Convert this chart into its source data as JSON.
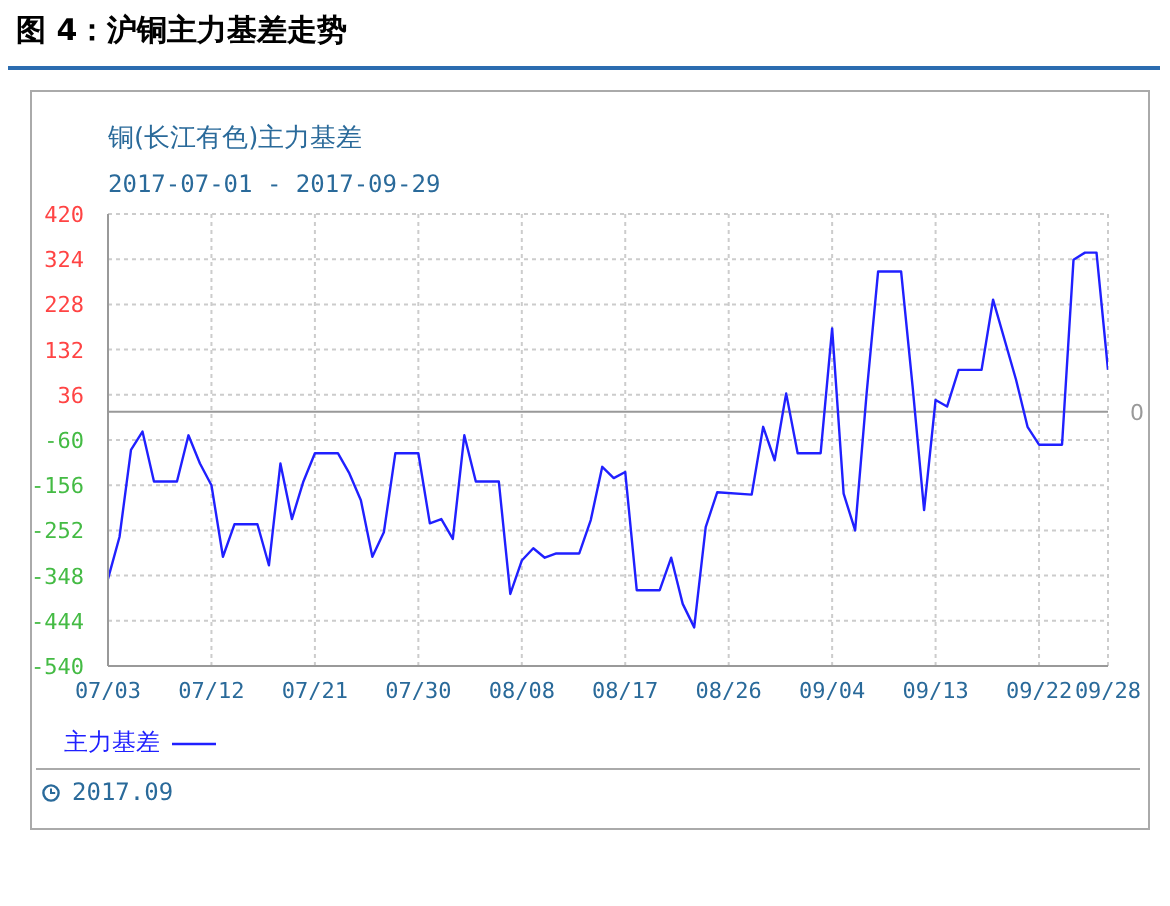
{
  "chart_data": {
    "type": "line",
    "title": "图 4：沪铜主力基差走势",
    "subtitle": "铜(长江有色)主力基差",
    "annotations": [
      "2017-07-01 - 2017-09-29",
      "2017.09"
    ],
    "x": [
      "--07-03",
      "--07-04",
      "--07-05",
      "--07-06",
      "--07-07",
      "--07-09",
      "--07-10",
      "--07-11",
      "--07-12",
      "--07-13",
      "--07-14",
      "--07-16",
      "--07-17",
      "--07-18",
      "--07-19",
      "--07-20",
      "--07-21",
      "--07-23",
      "--07-24",
      "--07-25",
      "--07-26",
      "--07-27",
      "--07-28",
      "--07-30",
      "--07-31",
      "--08-01",
      "--08-02",
      "--08-03",
      "--08-04",
      "--08-06",
      "--08-07",
      "--08-08",
      "--08-09",
      "--08-10",
      "--08-11",
      "--08-13",
      "--08-14",
      "--08-15",
      "--08-16",
      "--08-17",
      "--08-18",
      "--08-20",
      "--08-21",
      "--08-22",
      "--08-23",
      "--08-24",
      "--08-25",
      "--08-28",
      "--08-29",
      "--08-30",
      "--08-31",
      "--09-01",
      "--09-03",
      "--09-04",
      "--09-05",
      "--09-06",
      "--09-07",
      "--09-08",
      "--09-10",
      "--09-11",
      "--09-12",
      "--09-13",
      "--09-14",
      "--09-15",
      "--09-17",
      "--09-18",
      "--09-20",
      "--09-21",
      "--09-22",
      "--09-24",
      "--09-25",
      "--09-26",
      "--09-27",
      "--09-28"
    ],
    "series": [
      {
        "name": "主力基差",
        "color": "#2020ff",
        "values": [
          -355,
          -266,
          -81,
          -42,
          -148,
          -148,
          -50,
          -110,
          -156,
          -308,
          -239,
          -239,
          -326,
          -110,
          -228,
          -148,
          -88,
          -88,
          -131,
          -188,
          -308,
          -256,
          -88,
          -88,
          -237,
          -228,
          -270,
          -50,
          -148,
          -148,
          -387,
          -316,
          -290,
          -310,
          -301,
          -301,
          -230,
          -117,
          -141,
          -128,
          -379,
          -379,
          -310,
          -408,
          -458,
          -245,
          -171,
          -176,
          -32,
          -103,
          39,
          -88,
          -88,
          177,
          -174,
          -252,
          39,
          298,
          298,
          54,
          -209,
          25,
          11,
          89,
          89,
          238,
          68,
          -32,
          -70,
          -70,
          323,
          338,
          338,
          89
        ]
      }
    ],
    "xlim": [
      "--07-03",
      "--09-28"
    ],
    "xticks": [
      {
        "value": "--07-03",
        "label": "07/03"
      },
      {
        "value": "--07-12",
        "label": "07/12"
      },
      {
        "value": "--07-21",
        "label": "07/21"
      },
      {
        "value": "--07-30",
        "label": "07/30"
      },
      {
        "value": "--08-08",
        "label": "08/08"
      },
      {
        "value": "--08-17",
        "label": "08/17"
      },
      {
        "value": "--08-26",
        "label": "08/26"
      },
      {
        "value": "--09-04",
        "label": "09/04"
      },
      {
        "value": "--09-13",
        "label": "09/13"
      },
      {
        "value": "--09-22",
        "label": "09/22"
      },
      {
        "value": "--09-28",
        "label": "09/28"
      }
    ],
    "ylim": [
      -540,
      420
    ],
    "yticks": [
      -540,
      -444,
      -348,
      -252,
      -156,
      -60,
      36,
      132,
      228,
      324,
      420
    ],
    "ref_lines": [
      {
        "axis": "y",
        "value": 0,
        "label": "0",
        "color": "#999999"
      }
    ],
    "grid": true,
    "legend": "bottom left",
    "marker": "none",
    "line_style": "solid"
  }
}
